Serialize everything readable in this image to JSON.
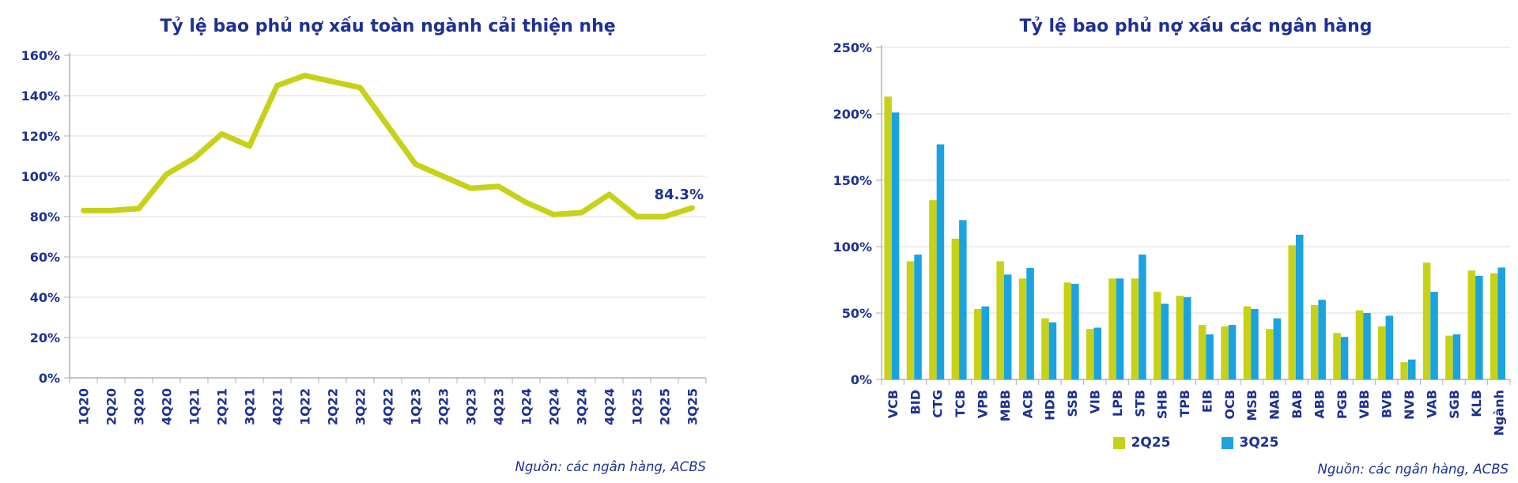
{
  "page": {
    "background": "#ffffff"
  },
  "theme": {
    "navy": "#1e3092",
    "lime": "#c6d118",
    "blue": "#1aa3e0",
    "grid": "#dcdcdc",
    "axis": "#b0b0b0"
  },
  "chart_data": [
    {
      "type": "line",
      "title": "Tỷ lệ bao phủ nợ xấu toàn ngành cải thiện nhẹ",
      "source": "Nguồn:  các ngân hàng, ACBS",
      "categories": [
        "1Q20",
        "2Q20",
        "3Q20",
        "4Q20",
        "1Q21",
        "2Q21",
        "3Q21",
        "4Q21",
        "1Q22",
        "2Q22",
        "3Q22",
        "4Q22",
        "1Q23",
        "2Q23",
        "3Q23",
        "4Q23",
        "1Q24",
        "2Q24",
        "3Q24",
        "4Q24",
        "1Q25",
        "2Q25",
        "3Q25"
      ],
      "series": [
        {
          "name": "Tỷ lệ bao phủ nợ xấu toàn ngành",
          "color": "#c6d118",
          "values": [
            83,
            83,
            84,
            101,
            109,
            121,
            115,
            145,
            150,
            147,
            144,
            125,
            106,
            100,
            94,
            95,
            87,
            81,
            82,
            91,
            80,
            80,
            84.3
          ]
        }
      ],
      "ylim": [
        0,
        160
      ],
      "ytick_step": 20,
      "ytick_labels": [
        "0%",
        "20%",
        "40%",
        "60%",
        "80%",
        "100%",
        "120%",
        "140%",
        "160%"
      ],
      "annotation": {
        "text": "84.3%",
        "category": "3Q25"
      },
      "grid": true,
      "legend": false
    },
    {
      "type": "bar",
      "title": "Tỷ lệ bao phủ nợ xấu các ngân hàng",
      "source": "Nguồn:  các ngân hàng, ACBS",
      "categories": [
        "VCB",
        "BID",
        "CTG",
        "TCB",
        "VPB",
        "MBB",
        "ACB",
        "HDB",
        "SSB",
        "VIB",
        "LPB",
        "STB",
        "SHB",
        "TPB",
        "EIB",
        "OCB",
        "MSB",
        "NAB",
        "BAB",
        "ABB",
        "PGB",
        "VBB",
        "BVB",
        "NVB",
        "VAB",
        "SGB",
        "KLB",
        "Ngành"
      ],
      "series": [
        {
          "name": "2Q25",
          "color": "#c6d118",
          "values": [
            213,
            89,
            135,
            106,
            53,
            89,
            76,
            46,
            73,
            38,
            76,
            76,
            66,
            63,
            41,
            40,
            55,
            38,
            101,
            56,
            35,
            52,
            40,
            13,
            88,
            33,
            82,
            80
          ]
        },
        {
          "name": "3Q25",
          "color": "#1aa3e0",
          "values": [
            201,
            94,
            177,
            120,
            55,
            79,
            84,
            43,
            72,
            39,
            76,
            94,
            57,
            62,
            34,
            41,
            53,
            46,
            109,
            60,
            32,
            50,
            48,
            15,
            66,
            34,
            78,
            84.3
          ]
        }
      ],
      "ylim": [
        0,
        250
      ],
      "ytick_step": 50,
      "ytick_labels": [
        "0%",
        "50%",
        "100%",
        "150%",
        "200%",
        "250%"
      ],
      "grid": true,
      "legend": true,
      "legend_position": "bottom"
    }
  ]
}
